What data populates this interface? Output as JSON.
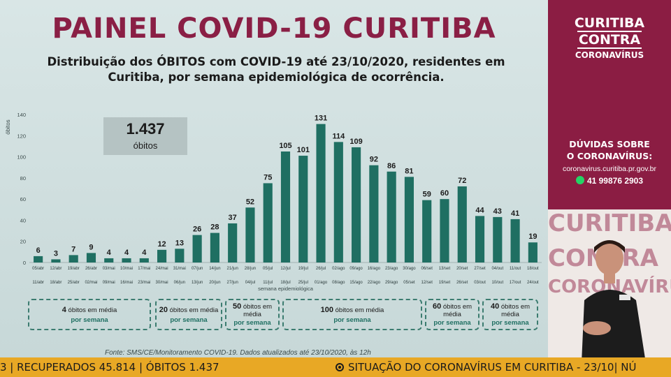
{
  "main": {
    "title": "PAINEL COVID-19 CURITIBA",
    "subtitle": "Distribuição dos ÓBITOS com COVID-19 até 23/10/2020, residentes em Curitiba, por semana epidemiológica de ocorrência.",
    "total_value": "1.437",
    "total_label": "óbitos",
    "source": "Fonte: SMS/CE/Monitoramento COVID-19. Dados atualizados até 23/10/2020, às 12h"
  },
  "chart_data": {
    "type": "bar",
    "ylabel": "óbitos",
    "xlabel": "semana epidemiológica",
    "ylim": [
      0,
      140
    ],
    "yticks": [
      0,
      20,
      40,
      60,
      80,
      100,
      120,
      140
    ],
    "categories_start": [
      "05/abr",
      "12/abr",
      "19/abr",
      "26/abr",
      "03/mai",
      "10/mai",
      "17/mai",
      "24/mai",
      "31/mai",
      "07/jun",
      "14/jun",
      "21/jun",
      "28/jun",
      "05/jul",
      "12/jul",
      "19/jul",
      "26/jul",
      "02/ago",
      "09/ago",
      "16/ago",
      "23/ago",
      "30/ago",
      "06/set",
      "13/set",
      "20/set",
      "27/set",
      "04/out",
      "11/out",
      "18/out"
    ],
    "categories_end": [
      "11/abr",
      "18/abr",
      "25/abr",
      "02/mai",
      "09/mai",
      "16/mai",
      "23/mai",
      "30/mai",
      "06/jun",
      "13/jun",
      "20/jun",
      "27/jun",
      "04/jul",
      "11/jul",
      "18/jul",
      "25/jul",
      "01/ago",
      "08/ago",
      "15/ago",
      "22/ago",
      "29/ago",
      "05/set",
      "12/set",
      "19/set",
      "26/set",
      "03/out",
      "10/out",
      "17/out",
      "24/out"
    ],
    "values": [
      6,
      3,
      7,
      9,
      4,
      4,
      4,
      12,
      13,
      26,
      28,
      37,
      52,
      75,
      105,
      101,
      131,
      114,
      109,
      92,
      86,
      81,
      59,
      60,
      72,
      44,
      43,
      41,
      19
    ],
    "bar_color": "#1f6f62",
    "grid": false,
    "annotations": [
      {
        "number": "4",
        "text": "óbitos em média",
        "period": "por semana"
      },
      {
        "number": "20",
        "text": "óbitos em média",
        "period": "por semana"
      },
      {
        "number": "50",
        "text": "óbitos em média",
        "period": "por semana"
      },
      {
        "number": "100",
        "text": "óbitos em média",
        "period": "por semana"
      },
      {
        "number": "60",
        "text": "óbitos em média",
        "period": "por semana"
      },
      {
        "number": "40",
        "text": "óbitos em média",
        "period": "por semana"
      }
    ]
  },
  "side": {
    "brand_line1": "CURITIBA",
    "brand_line2": "CONTRA",
    "brand_line3": "CORONAVÍRUS",
    "doubts_line1": "DÚVIDAS SOBRE",
    "doubts_line2": "O CORONAVÍRUS:",
    "site": "coronavirus.curitiba.pr.gov.br",
    "phone": "41 99876 2903",
    "bg_word1": "CURITIBA",
    "bg_word2": "CONTRA",
    "bg_word3": "CORONAVÍRUS",
    "colors": {
      "panel": "#8b1d43",
      "accent": "#e8a825"
    },
    "icon": "whatsapp-icon"
  },
  "ticker": {
    "left": "3 | RECUPERADOS 45.814 | ÓBITOS 1.437",
    "right": "SITUAÇÃO DO CORONAVÍRUS EM CURITIBA - 23/10| NÚ",
    "icon": "radio-icon"
  }
}
